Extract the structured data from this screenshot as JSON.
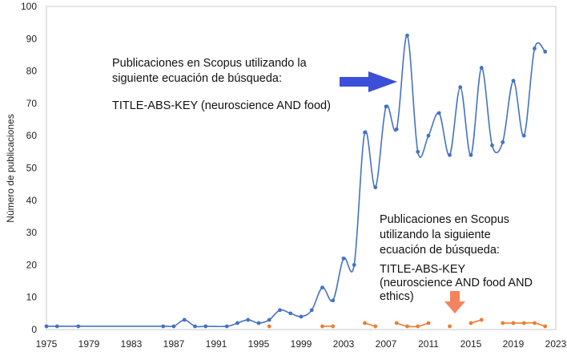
{
  "chart_data": {
    "type": "line",
    "ylabel": "Número de publicaciones",
    "xlabel": "",
    "ylim": [
      0,
      100
    ],
    "xlim": [
      1975,
      2023
    ],
    "x_ticks": [
      1975,
      1979,
      1983,
      1987,
      1991,
      1995,
      1999,
      2003,
      2007,
      2011,
      2015,
      2019,
      2023
    ],
    "y_ticks": [
      0,
      10,
      20,
      30,
      40,
      50,
      60,
      70,
      80,
      90,
      100
    ],
    "grid": false,
    "colors": {
      "series1": "#4472c4",
      "series2": "#ed7d31",
      "arrow_blue": "#3b4fd8",
      "arrow_orange": "#f4845f"
    },
    "series": [
      {
        "x": [
          1975,
          1976,
          1978,
          1986,
          1987,
          1988,
          1989,
          1990,
          1992,
          1993,
          1994,
          1995,
          1996,
          1997,
          1998,
          1999,
          2000,
          2001,
          2002,
          2003,
          2004,
          2005,
          2006,
          2007,
          2008,
          2009,
          2010,
          2011,
          2012,
          2013,
          2014,
          2015,
          2016,
          2017,
          2018,
          2019,
          2020,
          2021,
          2022
        ],
        "values": [
          1,
          1,
          1,
          1,
          1,
          3,
          1,
          1,
          1,
          2,
          3,
          2,
          3,
          6,
          5,
          4,
          6,
          13,
          9,
          22,
          20,
          61,
          44,
          69,
          62,
          91,
          55,
          60,
          67,
          54,
          75,
          54,
          81,
          57,
          58,
          77,
          60,
          87,
          86
        ]
      },
      {
        "segments": [
          {
            "x": [
              1996
            ],
            "values": [
              1
            ]
          },
          {
            "x": [
              2001,
              2002
            ],
            "values": [
              1,
              1
            ]
          },
          {
            "x": [
              2005,
              2006
            ],
            "values": [
              2,
              1
            ]
          },
          {
            "x": [
              2008,
              2009,
              2010,
              2011
            ],
            "values": [
              2,
              1,
              1,
              2
            ]
          },
          {
            "x": [
              2013
            ],
            "values": [
              1
            ]
          },
          {
            "x": [
              2015,
              2016
            ],
            "values": [
              2,
              3
            ]
          },
          {
            "x": [
              2018,
              2019,
              2020,
              2021,
              2022
            ],
            "values": [
              2,
              2,
              2,
              2,
              1
            ]
          }
        ]
      }
    ],
    "annotations": [
      {
        "lines": [
          "Publicaciones en Scopus utilizando la",
          "siguiente ecuación de búsqueda:",
          "",
          "TITLE-ABS-KEY (neuroscience AND food)"
        ]
      },
      {
        "lines": [
          "Publicaciones en Scopus",
          "utilizando la siguiente",
          "ecuación de búsqueda:",
          "",
          "TITLE-ABS-KEY",
          "(neuroscience AND food AND",
          "ethics)"
        ]
      }
    ]
  }
}
